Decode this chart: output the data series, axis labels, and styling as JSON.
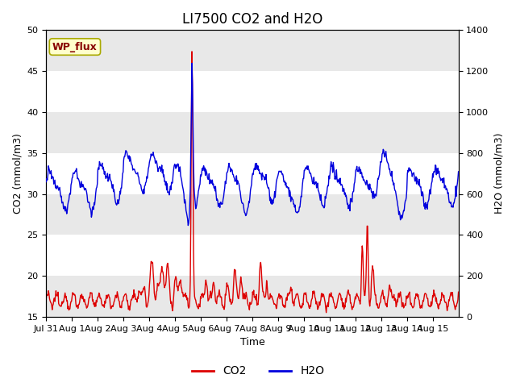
{
  "title": "LI7500 CO2 and H2O",
  "xlabel": "Time",
  "ylabel_left": "CO2 (mmol/m3)",
  "ylabel_right": "H2O (mmol/m3)",
  "co2_ylim": [
    15,
    50
  ],
  "h2o_ylim": [
    0,
    1400
  ],
  "co2_yticks": [
    15,
    20,
    25,
    30,
    35,
    40,
    45,
    50
  ],
  "h2o_yticks": [
    0,
    200,
    400,
    600,
    800,
    1000,
    1200,
    1400
  ],
  "xtick_labels": [
    "Jul 31",
    "Aug 1",
    "Aug 2",
    "Aug 3",
    "Aug 4",
    "Aug 5",
    "Aug 6",
    "Aug 7",
    "Aug 8",
    "Aug 9",
    "Aug 10",
    "Aug 11",
    "Aug 12",
    "Aug 13",
    "Aug 14",
    "Aug 15"
  ],
  "co2_color": "#dd0000",
  "h2o_color": "#0000dd",
  "background_color": "#ffffff",
  "plot_bg_color": "#ffffff",
  "band_color": "#e8e8e8",
  "annotation_text": "WP_flux",
  "annotation_color": "#880000",
  "annotation_bg": "#ffffcc",
  "annotation_edge": "#aaaa00",
  "title_fontsize": 12,
  "label_fontsize": 9,
  "tick_fontsize": 8,
  "legend_fontsize": 10,
  "line_width": 1.0
}
